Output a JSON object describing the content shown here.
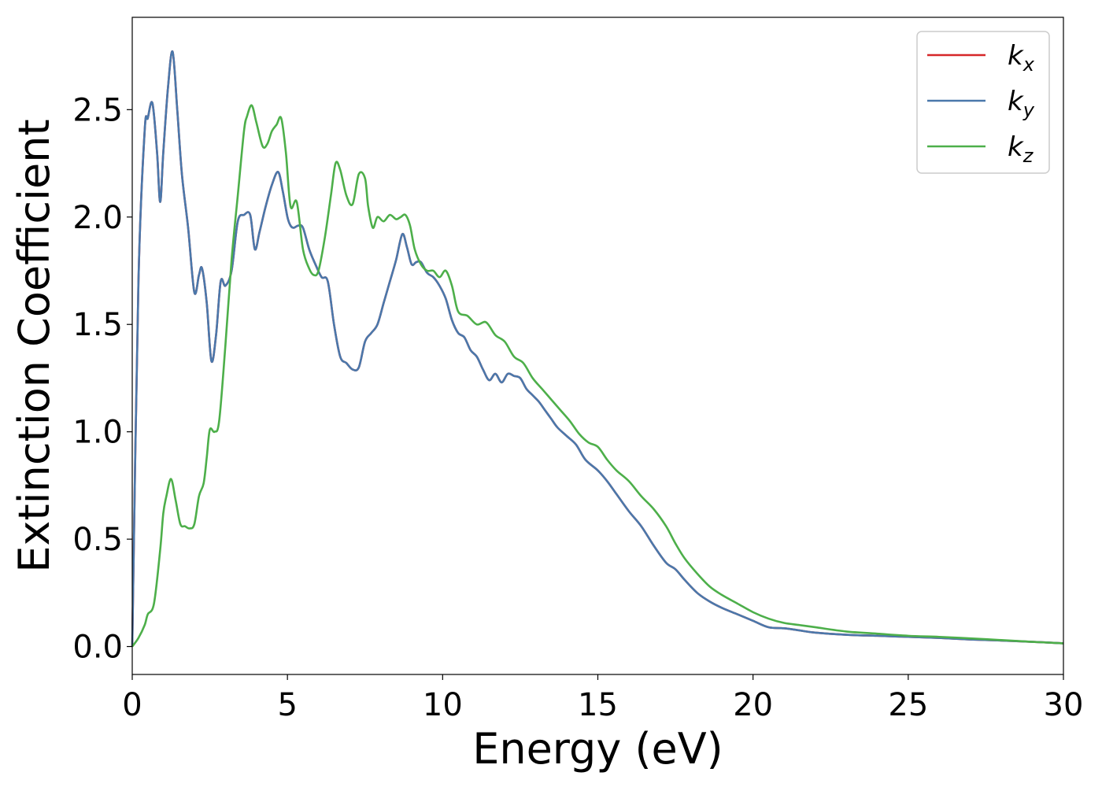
{
  "chart_data": {
    "type": "line",
    "title": "",
    "xlabel": "Energy (eV)",
    "ylabel": "Extinction Coefficient",
    "xlim": [
      0,
      30
    ],
    "ylim": [
      -0.13,
      2.93
    ],
    "xticks": [
      0,
      5,
      10,
      15,
      20,
      25,
      30
    ],
    "yticks": [
      0.0,
      0.5,
      1.0,
      1.5,
      2.0,
      2.5
    ],
    "xtick_labels": [
      "0",
      "5",
      "10",
      "15",
      "20",
      "25",
      "30"
    ],
    "ytick_labels": [
      "0.0",
      "0.5",
      "1.0",
      "1.5",
      "2.0",
      "2.5"
    ],
    "grid": false,
    "legend_position": "top-right",
    "series": [
      {
        "name": "k",
        "subscript": "x",
        "color": "#d62728",
        "x": [
          0,
          0.2,
          0.4,
          0.5,
          0.65,
          0.8,
          0.9,
          1.0,
          1.15,
          1.3,
          1.45,
          1.6,
          1.8,
          2.0,
          2.15,
          2.25,
          2.4,
          2.55,
          2.7,
          2.85,
          3.0,
          3.2,
          3.4,
          3.6,
          3.8,
          3.95,
          4.1,
          4.3,
          4.5,
          4.7,
          4.85,
          5.0,
          5.1,
          5.2,
          5.35,
          5.5,
          5.7,
          5.9,
          6.1,
          6.3,
          6.5,
          6.7,
          6.9,
          7.1,
          7.3,
          7.5,
          7.7,
          7.9,
          8.1,
          8.3,
          8.5,
          8.7,
          8.85,
          9.0,
          9.15,
          9.3,
          9.5,
          9.7,
          9.9,
          10.1,
          10.3,
          10.5,
          10.7,
          10.9,
          11.1,
          11.3,
          11.5,
          11.7,
          11.9,
          12.1,
          12.3,
          12.5,
          12.7,
          12.9,
          13.1,
          13.3,
          13.5,
          13.7,
          14.0,
          14.3,
          14.6,
          15.0,
          15.3,
          15.6,
          16.0,
          16.4,
          16.8,
          17.2,
          17.5,
          17.8,
          18.2,
          18.6,
          19.0,
          19.5,
          20.0,
          20.5,
          21.0,
          21.5,
          22.0,
          23.0,
          24.0,
          25.0,
          26.0,
          27.0,
          28.0,
          29.0,
          30.0
        ],
        "values": [
          0.0,
          1.7,
          2.4,
          2.46,
          2.53,
          2.3,
          2.07,
          2.3,
          2.6,
          2.77,
          2.5,
          2.2,
          1.95,
          1.65,
          1.73,
          1.76,
          1.6,
          1.33,
          1.45,
          1.7,
          1.68,
          1.75,
          1.98,
          2.01,
          2.01,
          1.85,
          1.93,
          2.05,
          2.15,
          2.21,
          2.12,
          2.0,
          1.96,
          1.95,
          1.96,
          1.95,
          1.85,
          1.78,
          1.72,
          1.7,
          1.5,
          1.35,
          1.32,
          1.29,
          1.3,
          1.42,
          1.46,
          1.5,
          1.6,
          1.7,
          1.8,
          1.92,
          1.86,
          1.78,
          1.79,
          1.79,
          1.74,
          1.72,
          1.68,
          1.62,
          1.52,
          1.46,
          1.44,
          1.38,
          1.35,
          1.29,
          1.24,
          1.27,
          1.23,
          1.27,
          1.26,
          1.25,
          1.2,
          1.17,
          1.14,
          1.1,
          1.06,
          1.02,
          0.98,
          0.94,
          0.87,
          0.82,
          0.77,
          0.71,
          0.63,
          0.56,
          0.47,
          0.39,
          0.36,
          0.31,
          0.25,
          0.21,
          0.18,
          0.15,
          0.12,
          0.09,
          0.085,
          0.075,
          0.065,
          0.055,
          0.05,
          0.045,
          0.04,
          0.033,
          0.028,
          0.022,
          0.015
        ]
      },
      {
        "name": "k",
        "subscript": "y",
        "color": "#4a78ab",
        "x": [
          0,
          0.2,
          0.4,
          0.5,
          0.65,
          0.8,
          0.9,
          1.0,
          1.15,
          1.3,
          1.45,
          1.6,
          1.8,
          2.0,
          2.15,
          2.25,
          2.4,
          2.55,
          2.7,
          2.85,
          3.0,
          3.2,
          3.4,
          3.6,
          3.8,
          3.95,
          4.1,
          4.3,
          4.5,
          4.7,
          4.85,
          5.0,
          5.1,
          5.2,
          5.35,
          5.5,
          5.7,
          5.9,
          6.1,
          6.3,
          6.5,
          6.7,
          6.9,
          7.1,
          7.3,
          7.5,
          7.7,
          7.9,
          8.1,
          8.3,
          8.5,
          8.7,
          8.85,
          9.0,
          9.15,
          9.3,
          9.5,
          9.7,
          9.9,
          10.1,
          10.3,
          10.5,
          10.7,
          10.9,
          11.1,
          11.3,
          11.5,
          11.7,
          11.9,
          12.1,
          12.3,
          12.5,
          12.7,
          12.9,
          13.1,
          13.3,
          13.5,
          13.7,
          14.0,
          14.3,
          14.6,
          15.0,
          15.3,
          15.6,
          16.0,
          16.4,
          16.8,
          17.2,
          17.5,
          17.8,
          18.2,
          18.6,
          19.0,
          19.5,
          20.0,
          20.5,
          21.0,
          21.5,
          22.0,
          23.0,
          24.0,
          25.0,
          26.0,
          27.0,
          28.0,
          29.0,
          30.0
        ],
        "values": [
          0.0,
          1.7,
          2.4,
          2.46,
          2.53,
          2.3,
          2.07,
          2.3,
          2.6,
          2.77,
          2.5,
          2.2,
          1.95,
          1.65,
          1.73,
          1.76,
          1.6,
          1.33,
          1.45,
          1.7,
          1.68,
          1.75,
          1.98,
          2.01,
          2.01,
          1.85,
          1.93,
          2.05,
          2.15,
          2.21,
          2.12,
          2.0,
          1.96,
          1.95,
          1.96,
          1.95,
          1.85,
          1.78,
          1.72,
          1.7,
          1.5,
          1.35,
          1.32,
          1.29,
          1.3,
          1.42,
          1.46,
          1.5,
          1.6,
          1.7,
          1.8,
          1.92,
          1.86,
          1.78,
          1.79,
          1.79,
          1.74,
          1.72,
          1.68,
          1.62,
          1.52,
          1.46,
          1.44,
          1.38,
          1.35,
          1.29,
          1.24,
          1.27,
          1.23,
          1.27,
          1.26,
          1.25,
          1.2,
          1.17,
          1.14,
          1.1,
          1.06,
          1.02,
          0.98,
          0.94,
          0.87,
          0.82,
          0.77,
          0.71,
          0.63,
          0.56,
          0.47,
          0.39,
          0.36,
          0.31,
          0.25,
          0.21,
          0.18,
          0.15,
          0.12,
          0.09,
          0.085,
          0.075,
          0.065,
          0.055,
          0.05,
          0.045,
          0.04,
          0.033,
          0.028,
          0.022,
          0.015
        ]
      },
      {
        "name": "k",
        "subscript": "z",
        "color": "#4daf4a",
        "x": [
          0,
          0.2,
          0.4,
          0.5,
          0.7,
          0.9,
          1.0,
          1.1,
          1.25,
          1.4,
          1.55,
          1.7,
          1.85,
          2.0,
          2.15,
          2.3,
          2.4,
          2.5,
          2.65,
          2.8,
          3.0,
          3.2,
          3.4,
          3.6,
          3.7,
          3.85,
          4.0,
          4.2,
          4.35,
          4.5,
          4.65,
          4.8,
          4.95,
          5.1,
          5.3,
          5.5,
          5.7,
          5.85,
          6.0,
          6.2,
          6.4,
          6.55,
          6.7,
          6.9,
          7.1,
          7.3,
          7.5,
          7.6,
          7.75,
          7.9,
          8.1,
          8.3,
          8.5,
          8.65,
          8.8,
          8.95,
          9.1,
          9.3,
          9.5,
          9.7,
          9.9,
          10.1,
          10.3,
          10.5,
          10.8,
          11.1,
          11.4,
          11.7,
          12.0,
          12.3,
          12.6,
          12.9,
          13.2,
          13.5,
          13.8,
          14.1,
          14.4,
          14.7,
          15.0,
          15.3,
          15.6,
          16.0,
          16.4,
          16.8,
          17.2,
          17.5,
          17.8,
          18.2,
          18.6,
          19.0,
          19.5,
          20.0,
          20.5,
          21.0,
          21.5,
          22.0,
          23.0,
          24.0,
          25.0,
          26.0,
          27.0,
          28.0,
          29.0,
          30.0
        ],
        "values": [
          0.0,
          0.04,
          0.1,
          0.15,
          0.2,
          0.45,
          0.62,
          0.7,
          0.78,
          0.68,
          0.57,
          0.56,
          0.55,
          0.57,
          0.7,
          0.76,
          0.88,
          1.01,
          1.0,
          1.05,
          1.4,
          1.8,
          2.1,
          2.4,
          2.47,
          2.52,
          2.44,
          2.33,
          2.34,
          2.4,
          2.43,
          2.46,
          2.3,
          2.05,
          2.07,
          1.85,
          1.76,
          1.73,
          1.75,
          1.9,
          2.1,
          2.25,
          2.22,
          2.1,
          2.06,
          2.2,
          2.18,
          2.05,
          1.95,
          2.0,
          1.98,
          2.01,
          1.99,
          2.0,
          2.01,
          1.96,
          1.85,
          1.78,
          1.75,
          1.75,
          1.72,
          1.75,
          1.68,
          1.56,
          1.54,
          1.5,
          1.51,
          1.45,
          1.42,
          1.35,
          1.32,
          1.25,
          1.2,
          1.15,
          1.1,
          1.05,
          0.99,
          0.95,
          0.93,
          0.87,
          0.82,
          0.77,
          0.7,
          0.64,
          0.56,
          0.48,
          0.41,
          0.34,
          0.28,
          0.24,
          0.2,
          0.16,
          0.13,
          0.11,
          0.1,
          0.09,
          0.07,
          0.06,
          0.05,
          0.045,
          0.038,
          0.03,
          0.022,
          0.015
        ]
      }
    ]
  }
}
